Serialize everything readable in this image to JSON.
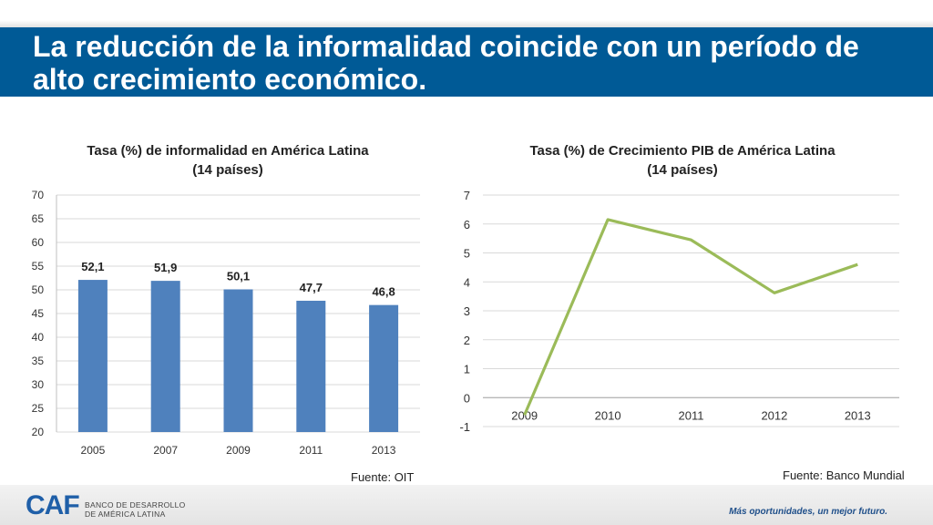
{
  "title": "La reducción de la informalidad coincide con un período de alto crecimiento económico.",
  "chart_data": [
    {
      "type": "bar",
      "title_line1": "Tasa (%) de informalidad en América Latina",
      "title_line2": "(14 países)",
      "categories": [
        "2005",
        "2007",
        "2009",
        "2011",
        "2013"
      ],
      "values": [
        52.1,
        51.9,
        50.1,
        47.7,
        46.8
      ],
      "value_labels": [
        "52,1",
        "51,9",
        "50,1",
        "47,7",
        "46,8"
      ],
      "ylim": [
        20,
        70
      ],
      "yticks": [
        "20",
        "25",
        "30",
        "35",
        "40",
        "45",
        "50",
        "55",
        "60",
        "65",
        "70"
      ],
      "color": "#4f81bd",
      "grid": true,
      "source": "Fuente: OIT"
    },
    {
      "type": "line",
      "title_line1": "Tasa (%) de Crecimiento PIB de América Latina",
      "title_line2": "(14 países)",
      "categories": [
        "2009",
        "2010",
        "2011",
        "2012",
        "2013"
      ],
      "values": [
        -0.6,
        6.15,
        5.45,
        3.62,
        4.6
      ],
      "ylim": [
        -1,
        7
      ],
      "yticks": [
        "-1",
        "0",
        "1",
        "2",
        "3",
        "4",
        "5",
        "6",
        "7"
      ],
      "color": "#9bbb59",
      "grid": true,
      "source": "Fuente: Banco Mundial"
    }
  ],
  "footer": {
    "logo": "CAF",
    "logo_line1": "BANCO DE DESARROLLO",
    "logo_line2": "DE AMÉRICA LATINA",
    "slogan": "Más oportunidades, un mejor futuro."
  }
}
